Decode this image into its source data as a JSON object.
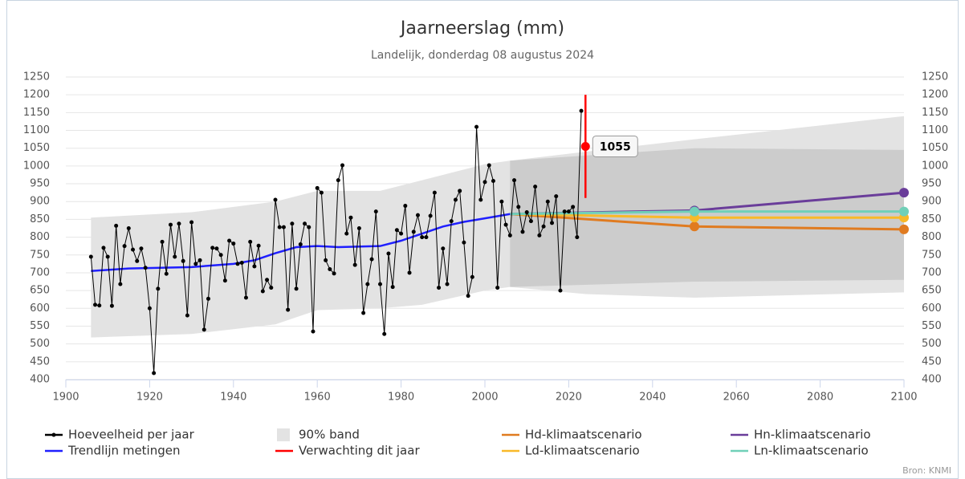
{
  "chart_data": {
    "type": "line",
    "title": "Jaarneerslag (mm)",
    "subtitle": "Landelijk, donderdag 08 augustus 2024",
    "source": "Bron: KNMI",
    "xlim": [
      1900,
      2100
    ],
    "xticks": [
      1900,
      1920,
      1940,
      1960,
      1980,
      2000,
      2020,
      2040,
      2060,
      2080,
      2100
    ],
    "ylim": [
      400,
      1250
    ],
    "yticks": [
      400,
      450,
      500,
      550,
      600,
      650,
      700,
      750,
      800,
      850,
      900,
      950,
      1000,
      1050,
      1100,
      1150,
      1200,
      1250
    ],
    "y2lim": [
      400,
      1250
    ],
    "grid": true,
    "series": [
      {
        "name": "Hoeveelheid per jaar",
        "color": "#000000",
        "x": [
          1906,
          1907,
          1908,
          1909,
          1910,
          1911,
          1912,
          1913,
          1914,
          1915,
          1916,
          1917,
          1918,
          1919,
          1920,
          1921,
          1922,
          1923,
          1924,
          1925,
          1926,
          1927,
          1928,
          1929,
          1930,
          1931,
          1932,
          1933,
          1934,
          1935,
          1936,
          1937,
          1938,
          1939,
          1940,
          1941,
          1942,
          1943,
          1944,
          1945,
          1946,
          1947,
          1948,
          1949,
          1950,
          1951,
          1952,
          1953,
          1954,
          1955,
          1956,
          1957,
          1958,
          1959,
          1960,
          1961,
          1962,
          1963,
          1964,
          1965,
          1966,
          1967,
          1968,
          1969,
          1970,
          1971,
          1972,
          1973,
          1974,
          1975,
          1976,
          1977,
          1978,
          1979,
          1980,
          1981,
          1982,
          1983,
          1984,
          1985,
          1986,
          1987,
          1988,
          1989,
          1990,
          1991,
          1992,
          1993,
          1994,
          1995,
          1996,
          1997,
          1998,
          1999,
          2000,
          2001,
          2002,
          2003,
          2004,
          2005,
          2006,
          2007,
          2008,
          2009,
          2010,
          2011,
          2012,
          2013,
          2014,
          2015,
          2016,
          2017,
          2018,
          2019,
          2020,
          2021,
          2022,
          2023
        ],
        "values": [
          745,
          610,
          608,
          770,
          745,
          607,
          832,
          668,
          775,
          825,
          765,
          733,
          768,
          714,
          600,
          418,
          655,
          787,
          697,
          835,
          745,
          838,
          733,
          580,
          842,
          725,
          735,
          540,
          627,
          770,
          768,
          750,
          678,
          790,
          782,
          725,
          728,
          630,
          787,
          718,
          776,
          648,
          680,
          658,
          905,
          828,
          828,
          596,
          838,
          655,
          780,
          838,
          828,
          535,
          938,
          925,
          735,
          710,
          698,
          960,
          1002,
          810,
          855,
          722,
          825,
          587,
          668,
          738,
          872,
          668,
          528,
          754,
          660,
          820,
          810,
          888,
          700,
          815,
          862,
          800,
          800,
          860,
          925,
          658,
          768,
          668,
          845,
          905,
          930,
          785,
          635,
          688,
          1110,
          905,
          955,
          1002,
          958,
          658,
          900,
          835,
          805,
          960,
          885,
          815,
          870,
          845,
          942,
          805,
          830,
          900,
          840,
          915,
          650,
          872,
          872,
          885,
          800,
          1155
        ]
      },
      {
        "name": "Trendlijn metingen",
        "color": "#1f1fff",
        "x": [
          1906,
          1915,
          1930,
          1940,
          1945,
          1950,
          1955,
          1960,
          1965,
          1975,
          1980,
          1985,
          1990,
          1995,
          2000,
          2006
        ],
        "values": [
          705,
          712,
          716,
          725,
          735,
          755,
          772,
          775,
          772,
          775,
          790,
          810,
          830,
          843,
          853,
          865
        ]
      },
      {
        "name": "90% band",
        "color": "#e3e3e3",
        "x": [
          1906,
          1930,
          1950,
          1960,
          1975,
          1985,
          2000,
          2006,
          2024,
          2050,
          2100
        ],
        "upper": [
          855,
          870,
          900,
          930,
          930,
          960,
          1005,
          1015,
          1040,
          1075,
          1140
        ],
        "lower": [
          518,
          528,
          555,
          595,
          600,
          610,
          650,
          660,
          640,
          630,
          645
        ]
      },
      {
        "name": "Verwachting dit jaar",
        "color": "#ff0000",
        "x": [
          2024
        ],
        "values": [
          1055
        ],
        "lower": [
          910
        ],
        "upper": [
          1200
        ]
      },
      {
        "name": "Hd-klimaatscenario",
        "color": "#e07b20",
        "x": [
          2006,
          2050,
          2100
        ],
        "values": [
          865,
          830,
          822
        ]
      },
      {
        "name": "Ld-klimaatscenario",
        "color": "#f9b928",
        "x": [
          2006,
          2050,
          2100
        ],
        "values": [
          865,
          855,
          855
        ]
      },
      {
        "name": "Hn-klimaatscenario",
        "color": "#6a3d9a",
        "x": [
          2006,
          2050,
          2100
        ],
        "values": [
          865,
          875,
          925
        ]
      },
      {
        "name": "Ln-klimaatscenario",
        "color": "#70d0b8",
        "x": [
          2006,
          2050,
          2100
        ],
        "values": [
          865,
          872,
          872
        ]
      }
    ],
    "scenario_band": {
      "color": "#cccccc",
      "x": [
        2006,
        2050,
        2100
      ],
      "upper": [
        1015,
        1050,
        1045
      ],
      "lower": [
        660,
        675,
        680
      ]
    }
  }
}
